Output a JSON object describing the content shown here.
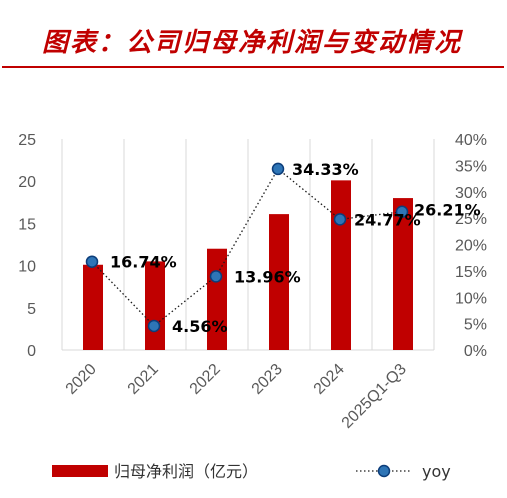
{
  "title": "图表：公司归母净利润与变动情况",
  "chart_data": {
    "type": "bar",
    "categories": [
      "2020",
      "2021",
      "2022",
      "2023",
      "2024",
      "2025Q1-Q3"
    ],
    "series": [
      {
        "name": "归母净利润（亿元）",
        "type": "bar",
        "axis": "left",
        "color": "#c00000",
        "values": [
          10.1,
          10.5,
          12.0,
          16.1,
          20.1,
          18.0
        ]
      },
      {
        "name": "yoy",
        "type": "line",
        "axis": "right",
        "color": "#1f5fa8",
        "values": [
          16.74,
          4.56,
          13.96,
          34.33,
          24.77,
          26.21
        ],
        "labels": [
          "16.74%",
          "4.56%",
          "13.96%",
          "34.33%",
          "24.77%",
          "26.21%"
        ]
      }
    ],
    "ylim": [
      0,
      25
    ],
    "yticks": [
      "0",
      "5",
      "10",
      "15",
      "20",
      "25"
    ],
    "y2lim": [
      0,
      40
    ],
    "y2ticks": [
      "0%",
      "5%",
      "10%",
      "15%",
      "20%",
      "25%",
      "30%",
      "35%",
      "40%"
    ],
    "grid": "vertical",
    "legend": "bottom"
  }
}
